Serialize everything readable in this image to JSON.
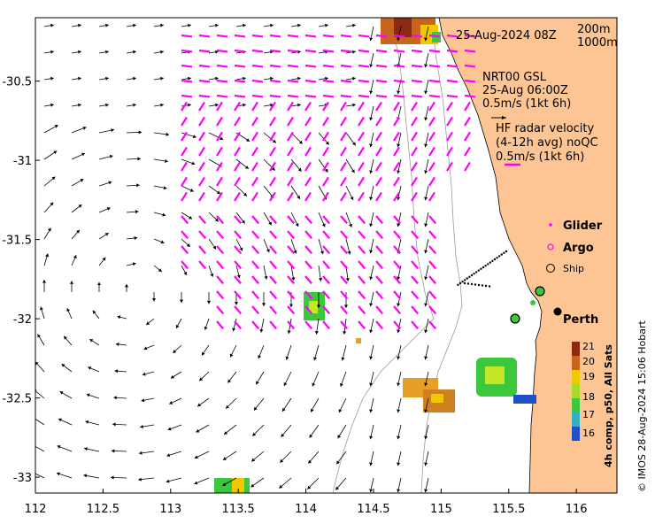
{
  "title": "25-Aug-2024 08Z",
  "depth_legend": [
    "200m",
    "1000m"
  ],
  "gsl": {
    "line1": "NRT00 GSL",
    "line2": "25-Aug 06:00Z",
    "line3": "0.5m/s (1kt 6h)"
  },
  "hf_radar": {
    "line1": "HF radar velocity",
    "line2": "(4-12h avg) noQC",
    "line3": "0.5m/s (1kt 6h)"
  },
  "symbols": {
    "glider": "Glider",
    "argo": "Argo",
    "ship": "Ship"
  },
  "city": "Perth",
  "colorbar": {
    "title": "4h comp, p50, All Sats",
    "ticks": [
      "21",
      "20",
      "19",
      "18",
      "17",
      "16"
    ]
  },
  "credit": "© IMOS 28-Aug-2024 15:06 Hobart",
  "axes": {
    "x_ticks": [
      "112",
      "112.5",
      "113",
      "113.5",
      "114",
      "114.5",
      "115",
      "115.5",
      "116"
    ],
    "y_ticks": [
      "-30.5",
      "-31",
      "-31.5",
      "-32",
      "-32.5",
      "-33"
    ],
    "xlim": [
      112,
      116.3
    ],
    "ylim": [
      -33.1,
      -30.1
    ]
  },
  "colors": {
    "land": "#fcc593",
    "hf_vectors": "#ff00ff",
    "gsl_vectors": "#000000",
    "sst_warm": "#c8641e",
    "sst_mid": "#f0c800",
    "sst_cool": "#3cc83c",
    "sst_cold": "#2050c8",
    "bathymetry": "#9a9a9a"
  }
}
